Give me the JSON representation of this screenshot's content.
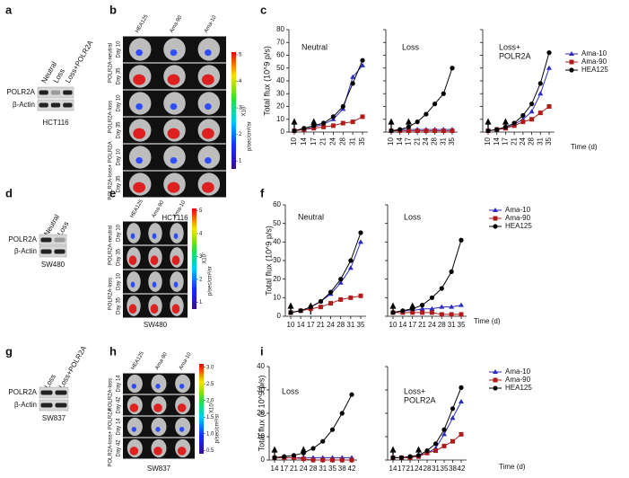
{
  "panel_letters": [
    "a",
    "b",
    "c",
    "d",
    "e",
    "f",
    "g",
    "h",
    "i"
  ],
  "blots": [
    {
      "lanes": [
        "Neutral",
        "Loss",
        "Loss+POLR2A"
      ],
      "rows": [
        "POLR2A",
        "β-Actin"
      ],
      "cell_line": "HCT116"
    },
    {
      "lanes": [
        "Neutral",
        "Loss"
      ],
      "rows": [
        "POLR2A",
        "β-Actin"
      ],
      "cell_line": "SW480"
    },
    {
      "lanes": [
        "Loss",
        "Loss+POLR2A"
      ],
      "rows": [
        "POLR2A",
        "β-Actin"
      ],
      "cell_line": "SW837"
    }
  ],
  "imaging": [
    {
      "columns": [
        "HEA125",
        "Ama-90",
        "Ama-10"
      ],
      "groups": [
        {
          "label": "POLR2A-neutral",
          "days": [
            "Day 10",
            "Day 35"
          ]
        },
        {
          "label": "POLR2A-loss",
          "days": [
            "Day 10",
            "Day 35"
          ]
        },
        {
          "label": "POLR2A-loss+ POLR2A",
          "days": [
            "Day 10",
            "Day 35"
          ]
        }
      ],
      "colorbar": {
        "lim": [
          0.7,
          5.1
        ],
        "ticks": [
          1,
          2,
          3,
          4,
          5
        ],
        "multiplier": "X10⁷",
        "unit": "p/sec/cm²/sr"
      },
      "cell_line": "HCT116"
    },
    {
      "columns": [
        "HEA125",
        "Ama-90",
        "Ama-10"
      ],
      "groups": [
        {
          "label": "POLR2A-neutral",
          "days": [
            "Day 10",
            "Day 35"
          ]
        },
        {
          "label": "POLR2A-loss",
          "days": [
            "Day 10",
            "Day 35"
          ]
        }
      ],
      "colorbar": {
        "lim": [
          0.7,
          5.1
        ],
        "ticks": [
          1,
          2,
          3,
          4,
          5
        ],
        "multiplier": "X10⁷",
        "unit": "p/sec/cm²/sr"
      },
      "cell_line": "SW480"
    },
    {
      "columns": [
        "HEA125",
        "Ama-90",
        "Ama-10"
      ],
      "groups": [
        {
          "label": "POLR2A-loss",
          "days": [
            "Day 14",
            "Day 42"
          ]
        },
        {
          "label": "POLR2A-loss+ POLR2A",
          "days": [
            "Day 14",
            "Day 42"
          ]
        }
      ],
      "colorbar": {
        "lim": [
          0.4,
          3.1
        ],
        "ticks": [
          0.5,
          {
            "value": 1,
            "label": "1.0"
          },
          1.5,
          {
            "value": 2,
            "label": "2.0"
          },
          2.5,
          {
            "value": 3,
            "label": "3.0"
          }
        ],
        "multiplier": "X10⁷",
        "unit": "p/sec/cm²/sr"
      },
      "cell_line": "SW837"
    }
  ],
  "chart_data": [
    {
      "type": "line",
      "y_label": "Total flux (10^9 p/s)",
      "x_label": "Time (d)",
      "categories": [
        10,
        14,
        17,
        21,
        24,
        28,
        31,
        35
      ],
      "ylim": [
        0,
        80
      ],
      "yticks": [
        0,
        10,
        20,
        30,
        40,
        50,
        60,
        70,
        80
      ],
      "arrows": [
        10,
        17
      ],
      "series": [
        {
          "name": "Ama-10",
          "color": "#2b2bbf",
          "marker": "triangle"
        },
        {
          "name": "Ama-90",
          "color": "#b01c1c",
          "marker": "square"
        },
        {
          "name": "HEA125",
          "color": "#000000",
          "marker": "circle"
        }
      ],
      "subplots": [
        {
          "title": [
            "Neutral"
          ],
          "values": [
            [
              1,
              2,
              4,
              6,
              10,
              18,
              43,
              52
            ],
            [
              1,
              2,
              3,
              4,
              5,
              7,
              8,
              12
            ],
            [
              1,
              3,
              5,
              7,
              12,
              20,
              38,
              56
            ]
          ]
        },
        {
          "title": [
            "Loss"
          ],
          "values": [
            [
              1,
              2,
              2,
              2,
              2,
              2,
              2,
              2
            ],
            [
              1,
              1,
              1,
              1,
              1,
              1,
              1,
              1
            ],
            [
              1,
              2,
              4,
              8,
              14,
              22,
              30,
              50
            ]
          ]
        },
        {
          "title": [
            "Loss+",
            "POLR2A"
          ],
          "values": [
            [
              1,
              2,
              3,
              6,
              10,
              16,
              30,
              50
            ],
            [
              1,
              2,
              3,
              5,
              8,
              10,
              15,
              20
            ],
            [
              1,
              2,
              4,
              7,
              13,
              22,
              38,
              62
            ]
          ]
        }
      ]
    },
    {
      "type": "line",
      "y_label": "Total flux (10^9 p/s)",
      "x_label": "Time (d)",
      "categories": [
        10,
        14,
        17,
        21,
        24,
        28,
        31,
        35
      ],
      "ylim": [
        0,
        60
      ],
      "yticks": [
        0,
        10,
        20,
        30,
        40,
        50,
        60
      ],
      "arrows": [
        10,
        17
      ],
      "series": [
        {
          "name": "Ama-10",
          "color": "#2b2bbf",
          "marker": "triangle"
        },
        {
          "name": "Ama-90",
          "color": "#b01c1c",
          "marker": "square"
        },
        {
          "name": "HEA125",
          "color": "#000000",
          "marker": "circle"
        }
      ],
      "subplots": [
        {
          "title": [
            "Neutral"
          ],
          "values": [
            [
              2,
              3,
              5,
              8,
              12,
              18,
              26,
              40
            ],
            [
              2,
              3,
              4,
              5,
              7,
              9,
              10,
              11
            ],
            [
              2,
              3,
              5,
              8,
              13,
              20,
              30,
              45
            ]
          ]
        },
        {
          "title": [
            "Loss"
          ],
          "values": [
            [
              2,
              3,
              3,
              4,
              4,
              5,
              5,
              6
            ],
            [
              2,
              2,
              2,
              2,
              2,
              1,
              1,
              1
            ],
            [
              2,
              3,
              4,
              6,
              10,
              15,
              24,
              41
            ]
          ]
        }
      ]
    },
    {
      "type": "line",
      "y_label": "Total flux (x 10^9 p/s)",
      "x_label": "Time (d)",
      "categories": [
        14,
        17,
        21,
        24,
        28,
        31,
        35,
        38,
        42
      ],
      "ylim": [
        0,
        40
      ],
      "yticks": [
        0,
        10,
        20,
        30,
        40
      ],
      "arrows": [
        14,
        24
      ],
      "series": [
        {
          "name": "Ama-10",
          "color": "#2b2bbf",
          "marker": "triangle"
        },
        {
          "name": "Ama-90",
          "color": "#b01c1c",
          "marker": "square"
        },
        {
          "name": "HEA125",
          "color": "#000000",
          "marker": "circle"
        }
      ],
      "subplots": [
        {
          "title": [
            "Loss"
          ],
          "values": [
            [
              1,
              1,
              1,
              1,
              1,
              1,
              1,
              1,
              1
            ],
            [
              1,
              1,
              1,
              0.5,
              0,
              0,
              0,
              0,
              0
            ],
            [
              1,
              1.5,
              2,
              3,
              5,
              8,
              13,
              20,
              28
            ]
          ]
        },
        {
          "title": [
            "Loss+",
            "POLR2A"
          ],
          "values": [
            [
              1,
              1,
              1.5,
              2,
              3,
              5,
              11,
              18,
              25
            ],
            [
              1,
              1,
              1,
              1.5,
              3,
              4,
              6,
              8,
              11
            ],
            [
              1,
              1,
              1.5,
              2,
              4,
              7,
              13,
              22,
              31
            ]
          ]
        }
      ]
    }
  ]
}
